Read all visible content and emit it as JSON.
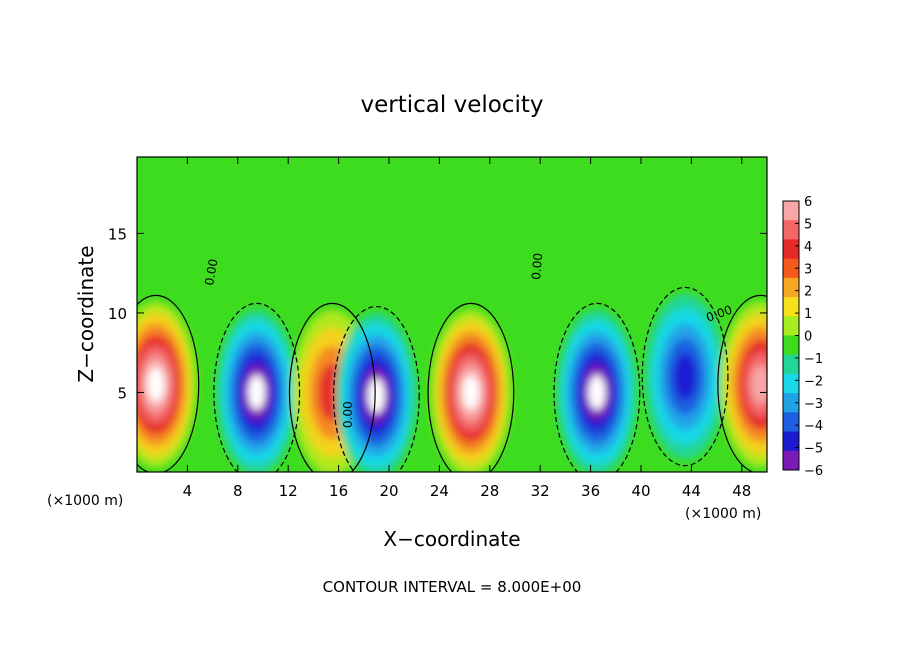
{
  "chart_data": {
    "type": "heatmap",
    "title": "vertical velocity",
    "xlabel": "X−coordinate",
    "ylabel": "Z−coordinate",
    "x_unit_label": "(×1000 m)",
    "x_unit_label_right": "(×1000 m)",
    "x_ticks": [
      4,
      8,
      12,
      16,
      20,
      24,
      28,
      32,
      36,
      40,
      44,
      48
    ],
    "y_ticks": [
      5,
      10,
      15
    ],
    "xlim": [
      0,
      50
    ],
    "ylim": [
      0,
      19.8
    ],
    "footer": "CONTOUR INTERVAL = 8.000E+00",
    "contour_labels": [
      "0.00",
      "0.00",
      "0.00",
      "0.00"
    ],
    "colorbar": {
      "ticks": [
        6,
        5,
        4,
        3,
        2,
        1,
        0,
        -1,
        -2,
        -3,
        -4,
        -5,
        -6
      ],
      "tick_labels": [
        "6",
        "5",
        "4",
        "3",
        "2",
        "1",
        "0",
        "−1",
        "−2",
        "−3",
        "−4",
        "−5",
        "−6"
      ],
      "colors": [
        "#f8a6a6",
        "#f26767",
        "#e62a2a",
        "#f55a1c",
        "#f5a623",
        "#f4e11a",
        "#a6ec1e",
        "#3ddc1f",
        "#22d69a",
        "#19d9e8",
        "#20a3e6",
        "#1e5ee0",
        "#1b1bd2",
        "#7a1bb8"
      ]
    },
    "features": [
      {
        "kind": "updraft",
        "x": 1.5,
        "z": 5.5,
        "peak": 7
      },
      {
        "kind": "downdraft",
        "x": 9.5,
        "z": 5.0,
        "peak": -7
      },
      {
        "kind": "updraft",
        "x": 15.5,
        "z": 5.0,
        "peak": 4
      },
      {
        "kind": "downdraft",
        "x": 19.0,
        "z": 4.8,
        "peak": -7
      },
      {
        "kind": "updraft",
        "x": 26.5,
        "z": 5.0,
        "peak": 7
      },
      {
        "kind": "downdraft",
        "x": 36.5,
        "z": 5.0,
        "peak": -7
      },
      {
        "kind": "downdraft",
        "x": 43.5,
        "z": 6.0,
        "peak": -5
      },
      {
        "kind": "updraft",
        "x": 49.5,
        "z": 5.5,
        "peak": 6
      }
    ]
  }
}
